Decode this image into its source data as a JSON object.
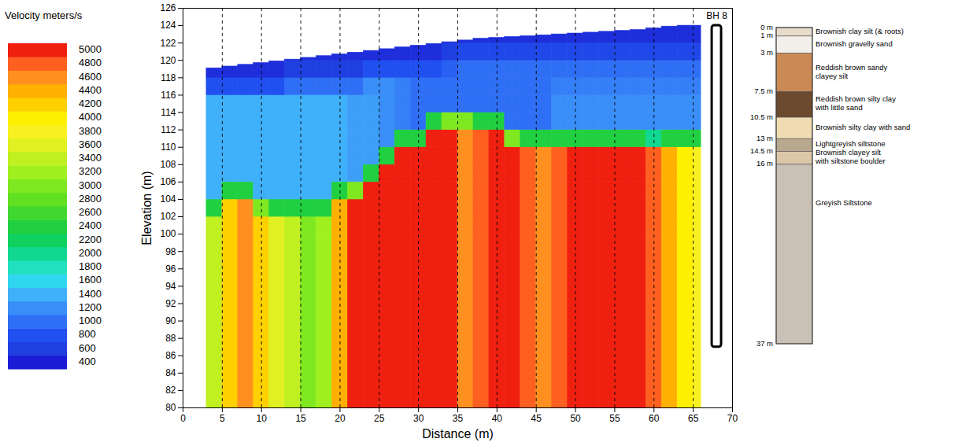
{
  "chart_data": {
    "type": "heatmap",
    "x_label": "Distance (m)",
    "y_label": "Elevation (m)",
    "xlim": [
      0,
      70
    ],
    "ylim": [
      80,
      126
    ],
    "xticks": [
      0,
      5,
      10,
      15,
      20,
      25,
      30,
      35,
      40,
      45,
      50,
      55,
      60,
      65,
      70
    ],
    "yticks": [
      80,
      82,
      84,
      86,
      88,
      90,
      92,
      94,
      96,
      98,
      100,
      102,
      104,
      106,
      108,
      110,
      112,
      114,
      116,
      118,
      120,
      122,
      124,
      126
    ],
    "grid": "x",
    "x": [
      3,
      5,
      7,
      9,
      11,
      13,
      15,
      17,
      19,
      21,
      23,
      25,
      27,
      29,
      31,
      33,
      35,
      37,
      39,
      41,
      43,
      45,
      47,
      49,
      51,
      53,
      55,
      57,
      59,
      61,
      63,
      65,
      66
    ],
    "y": [
      80,
      100,
      102,
      104,
      106,
      108,
      110,
      112,
      114,
      116,
      118,
      120,
      122,
      124
    ],
    "surface_elevation": [
      119.1,
      119.3,
      119.5,
      119.7,
      119.9,
      120.1,
      120.3,
      120.5,
      120.7,
      120.9,
      121.1,
      121.3,
      121.5,
      121.7,
      121.9,
      122.1,
      122.3,
      122.5,
      122.6,
      122.7,
      122.8,
      122.9,
      123.0,
      123.1,
      123.2,
      123.3,
      123.4,
      123.5,
      123.7,
      123.9,
      124.0,
      124.0
    ],
    "values": [
      [
        3400,
        4200,
        4600,
        4200,
        3600,
        3400,
        3000,
        3200,
        4400,
        5000,
        5000,
        5000,
        5000,
        5000,
        5000,
        5000,
        4600,
        4800,
        5000,
        5000,
        4800,
        4600,
        4800,
        5000,
        5000,
        5000,
        5000,
        5000,
        4800,
        4400,
        4000,
        3800
      ],
      [
        3400,
        4200,
        4600,
        4200,
        3600,
        3400,
        3000,
        3200,
        4400,
        5000,
        5000,
        5000,
        5000,
        5000,
        5000,
        5000,
        4600,
        4800,
        5000,
        5000,
        4800,
        4600,
        4800,
        5000,
        5000,
        5000,
        5000,
        5000,
        4800,
        4400,
        4000,
        3800
      ],
      [
        2400,
        4200,
        4600,
        3000,
        2400,
        2400,
        2400,
        2400,
        4400,
        5000,
        5000,
        5000,
        5000,
        5000,
        5000,
        5000,
        4600,
        4800,
        5000,
        5000,
        4800,
        4600,
        4800,
        5000,
        5000,
        5000,
        5000,
        5000,
        4800,
        4400,
        4000,
        3800
      ],
      [
        1400,
        2400,
        2400,
        1400,
        1400,
        1400,
        1400,
        1400,
        2400,
        3000,
        5000,
        5000,
        5000,
        5000,
        5000,
        5000,
        4600,
        4800,
        5000,
        5000,
        4800,
        4600,
        4800,
        5000,
        5000,
        5000,
        5000,
        5000,
        4800,
        4400,
        4000,
        3800
      ],
      [
        1400,
        1400,
        1400,
        1400,
        1400,
        1400,
        1400,
        1400,
        1400,
        1300,
        2400,
        5000,
        5000,
        5000,
        5000,
        5000,
        4600,
        4800,
        5000,
        5000,
        4800,
        4600,
        4800,
        5000,
        5000,
        5000,
        5000,
        5000,
        4800,
        4400,
        4000,
        3800
      ],
      [
        1400,
        1400,
        1400,
        1400,
        1400,
        1400,
        1400,
        1400,
        1400,
        1300,
        1300,
        2400,
        5000,
        5000,
        5000,
        5000,
        4600,
        4800,
        5000,
        5000,
        4800,
        4600,
        4800,
        5000,
        5000,
        5000,
        5000,
        5000,
        4800,
        4400,
        4000,
        3800
      ],
      [
        1400,
        1400,
        1400,
        1400,
        1400,
        1400,
        1400,
        1400,
        1400,
        1300,
        1300,
        1200,
        2400,
        2400,
        5000,
        5000,
        4600,
        4800,
        5000,
        3000,
        2400,
        2400,
        2400,
        2400,
        2400,
        2400,
        2400,
        2400,
        2000,
        2400,
        2400,
        2400
      ],
      [
        1400,
        1400,
        1400,
        1400,
        1400,
        1400,
        1400,
        1400,
        1400,
        1300,
        1300,
        1200,
        1100,
        1000,
        2400,
        3000,
        3000,
        2400,
        2400,
        1000,
        1000,
        1000,
        1200,
        1200,
        1200,
        1200,
        1200,
        1200,
        1200,
        1200,
        1200,
        1200
      ],
      [
        1400,
        1400,
        1400,
        1400,
        1400,
        1400,
        1400,
        1400,
        1400,
        1300,
        1300,
        1200,
        1100,
        1000,
        1000,
        1000,
        1000,
        1000,
        1000,
        1000,
        1000,
        1000,
        1200,
        1200,
        1200,
        1200,
        1200,
        1200,
        1200,
        1200,
        1200,
        1200
      ],
      [
        800,
        800,
        800,
        800,
        800,
        1000,
        1000,
        1000,
        1000,
        1000,
        1200,
        1200,
        1100,
        1000,
        1000,
        1000,
        1000,
        1000,
        1000,
        1000,
        1000,
        1000,
        1100,
        1100,
        1100,
        1100,
        1100,
        1100,
        1100,
        1100,
        1100,
        1100
      ],
      [
        500,
        500,
        500,
        500,
        500,
        600,
        600,
        600,
        600,
        600,
        800,
        800,
        800,
        800,
        800,
        900,
        1000,
        1000,
        1000,
        1000,
        1000,
        1000,
        1000,
        1000,
        1000,
        1000,
        1000,
        1000,
        1000,
        1000,
        1000,
        1000
      ],
      [
        null,
        null,
        null,
        null,
        null,
        500,
        500,
        500,
        500,
        500,
        500,
        500,
        500,
        500,
        500,
        600,
        700,
        700,
        700,
        700,
        700,
        700,
        700,
        700,
        700,
        700,
        700,
        700,
        700,
        700,
        700,
        700
      ],
      [
        null,
        null,
        null,
        null,
        null,
        null,
        null,
        null,
        null,
        null,
        null,
        null,
        null,
        null,
        null,
        500,
        500,
        500,
        500,
        500,
        500,
        500,
        500,
        500,
        500,
        500,
        500,
        500,
        500,
        500,
        500,
        500
      ]
    ],
    "colorbar": {
      "title": "Velocity meters/s",
      "range": [
        400,
        5000
      ],
      "ticks": [
        400,
        600,
        800,
        1000,
        1200,
        1400,
        1600,
        1800,
        2000,
        2200,
        2400,
        2600,
        2800,
        3000,
        3200,
        3400,
        3600,
        3800,
        4000,
        4200,
        4400,
        4600,
        4800,
        5000
      ],
      "colors": [
        "#1c1cd6",
        "#1f3fe0",
        "#2050f0",
        "#2f6ff5",
        "#3a8ef8",
        "#3fb0fa",
        "#30d5f0",
        "#20e0c0",
        "#10d890",
        "#10d060",
        "#20d040",
        "#40d830",
        "#60e020",
        "#80e820",
        "#a0f020",
        "#c0f020",
        "#e0f020",
        "#f8f020",
        "#fff000",
        "#ffd000",
        "#ffb000",
        "#ff9020",
        "#ff6020",
        "#f02010"
      ]
    },
    "borehole": {
      "name": "BH 8",
      "x": 68,
      "top_elevation": 124,
      "depth_ticks": [
        {
          "value": 0,
          "label": "0 m"
        },
        {
          "value": 1,
          "label": "1 m"
        },
        {
          "value": 3,
          "label": "3 m"
        },
        {
          "value": 7.5,
          "label": "7.5 m"
        },
        {
          "value": 10.5,
          "label": "10.5 m"
        },
        {
          "value": 13,
          "label": "13 m"
        },
        {
          "value": 14.5,
          "label": "14.5 m"
        },
        {
          "value": 16,
          "label": "16 m"
        },
        {
          "value": 37,
          "label": "37 m"
        }
      ],
      "layers": [
        {
          "name": "Brownish clay silt (& roots)",
          "color": "#e9dccb"
        },
        {
          "name": "Brownish gravelly sand",
          "color": "#f2efea"
        },
        {
          "name": "Reddish brown sandy clayey silt",
          "color": "#c98a55"
        },
        {
          "name": "Reddish brown silty clay with little sand",
          "color": "#6b4a2e"
        },
        {
          "name": "Brownish silty clay with sand",
          "color": "#f0dcb0"
        },
        {
          "name": "Lightgreyish siltstone",
          "color": "#b8a890"
        },
        {
          "name": "Brownish clayey silt with siltstone boulder",
          "color": "#dcc8a8"
        },
        {
          "name": "Greyish Siltstone",
          "color": "#c9c0b6"
        }
      ]
    }
  }
}
